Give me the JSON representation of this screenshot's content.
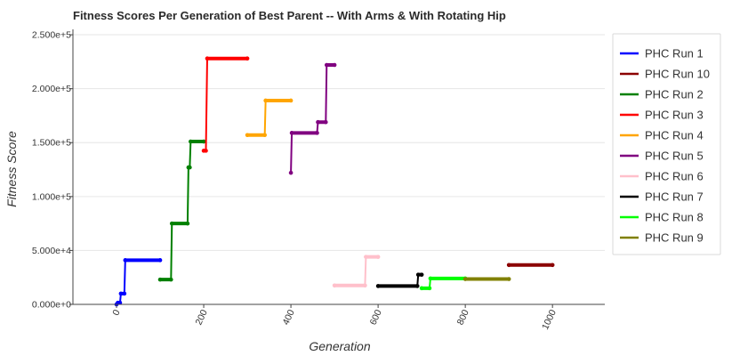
{
  "chart_data": {
    "type": "line",
    "title": "Fitness Scores Per Generation of Best Parent -- With Arms & With Rotating Hip",
    "xlabel": "Generation",
    "ylabel": "Fitness Score",
    "xlim": [
      -100,
      1120
    ],
    "ylim": [
      0,
      255000
    ],
    "x_ticks": [
      0,
      200,
      400,
      600,
      800,
      1000
    ],
    "x_tick_labels": [
      "0",
      "200",
      "400",
      "600",
      "800",
      "1000"
    ],
    "y_ticks": [
      0,
      50000,
      100000,
      150000,
      200000,
      250000
    ],
    "y_tick_labels": [
      "0.000e+0",
      "5.000e+4",
      "1.000e+5",
      "1.500e+5",
      "2.000e+5",
      "2.500e+5"
    ],
    "grid": true,
    "legend_position": "right",
    "series": [
      {
        "name": "PHC Run 1",
        "color": "#0000ff",
        "points": [
          [
            0,
            0
          ],
          [
            3,
            1500
          ],
          [
            8,
            1500
          ],
          [
            10,
            10000
          ],
          [
            18,
            10000
          ],
          [
            20,
            41000
          ],
          [
            100,
            41000
          ]
        ]
      },
      {
        "name": "PHC Run 10",
        "color": "#8b0000",
        "points": [
          [
            900,
            36500
          ],
          [
            1000,
            36500
          ]
        ]
      },
      {
        "name": "PHC Run 2",
        "color": "#008000",
        "points": [
          [
            100,
            23000
          ],
          [
            125,
            23000
          ],
          [
            127,
            75000
          ],
          [
            163,
            75000
          ],
          [
            165,
            127000
          ],
          [
            168,
            127000
          ],
          [
            170,
            151000
          ],
          [
            200,
            151000
          ]
        ]
      },
      {
        "name": "PHC Run 3",
        "color": "#ff0000",
        "points": [
          [
            200,
            142500
          ],
          [
            205,
            142500
          ],
          [
            208,
            228000
          ],
          [
            300,
            228000
          ]
        ]
      },
      {
        "name": "PHC Run 4",
        "color": "#ffa500",
        "points": [
          [
            300,
            157000
          ],
          [
            340,
            157000
          ],
          [
            342,
            189000
          ],
          [
            400,
            189000
          ]
        ]
      },
      {
        "name": "PHC Run 5",
        "color": "#800080",
        "points": [
          [
            400,
            122000
          ],
          [
            402,
            159000
          ],
          [
            460,
            159000
          ],
          [
            462,
            169000
          ],
          [
            480,
            169000
          ],
          [
            482,
            222000
          ],
          [
            500,
            222000
          ]
        ]
      },
      {
        "name": "PHC Run 6",
        "color": "#ffc0cb",
        "points": [
          [
            500,
            17500
          ],
          [
            570,
            17500
          ],
          [
            572,
            44000
          ],
          [
            600,
            44000
          ]
        ]
      },
      {
        "name": "PHC Run 7",
        "color": "#000000",
        "points": [
          [
            600,
            17000
          ],
          [
            690,
            17000
          ],
          [
            692,
            27500
          ],
          [
            700,
            27500
          ]
        ]
      },
      {
        "name": "PHC Run 8",
        "color": "#00ff00",
        "points": [
          [
            700,
            15000
          ],
          [
            718,
            15000
          ],
          [
            720,
            24000
          ],
          [
            800,
            24000
          ]
        ]
      },
      {
        "name": "PHC Run 9",
        "color": "#808000",
        "points": [
          [
            800,
            23500
          ],
          [
            900,
            23500
          ]
        ]
      }
    ]
  }
}
